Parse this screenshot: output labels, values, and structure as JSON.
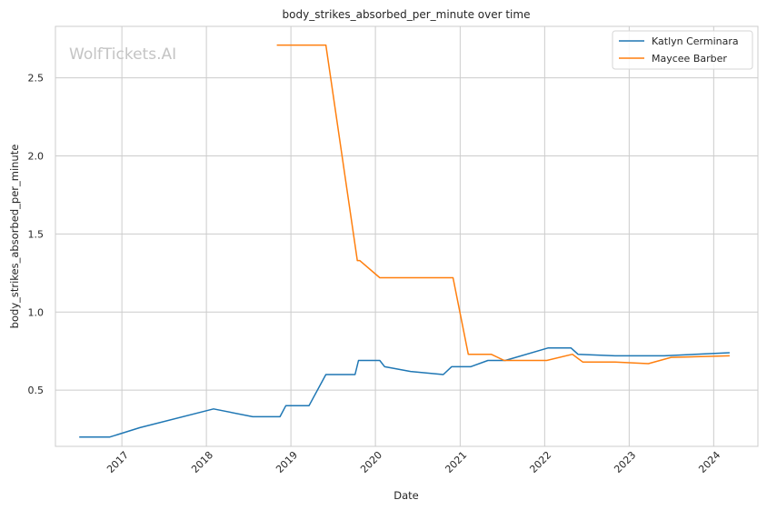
{
  "chart_data": {
    "type": "line",
    "title": "body_strikes_absorbed_per_minute over time",
    "xlabel": "Date",
    "ylabel": "body_strikes_absorbed_per_minute",
    "watermark": "WolfTickets.AI",
    "xlim": [
      "2016-03-20",
      "2024-07-10"
    ],
    "ylim": [
      0.14,
      2.83
    ],
    "x_ticks": [
      "2017",
      "2018",
      "2019",
      "2020",
      "2021",
      "2022",
      "2023",
      "2024"
    ],
    "y_ticks": [
      "0.5",
      "1.0",
      "1.5",
      "2.0",
      "2.5"
    ],
    "grid": true,
    "legend_position": "top-right",
    "series": [
      {
        "name": "Katlyn Cerminara",
        "color": "#1f77b4",
        "points": [
          [
            "2016-07-01",
            0.2
          ],
          [
            "2016-11-10",
            0.2
          ],
          [
            "2017-03-20",
            0.26
          ],
          [
            "2018-02-01",
            0.38
          ],
          [
            "2018-07-20",
            0.33
          ],
          [
            "2018-11-15",
            0.33
          ],
          [
            "2018-12-10",
            0.4
          ],
          [
            "2019-03-20",
            0.4
          ],
          [
            "2019-06-01",
            0.6
          ],
          [
            "2019-10-05",
            0.6
          ],
          [
            "2019-10-20",
            0.69
          ],
          [
            "2020-01-20",
            0.69
          ],
          [
            "2020-02-10",
            0.65
          ],
          [
            "2020-06-01",
            0.62
          ],
          [
            "2020-10-20",
            0.6
          ],
          [
            "2020-11-25",
            0.65
          ],
          [
            "2021-02-15",
            0.65
          ],
          [
            "2021-05-01",
            0.69
          ],
          [
            "2021-07-15",
            0.69
          ],
          [
            "2022-01-15",
            0.77
          ],
          [
            "2022-04-25",
            0.77
          ],
          [
            "2022-05-25",
            0.73
          ],
          [
            "2022-11-01",
            0.72
          ],
          [
            "2023-06-01",
            0.72
          ],
          [
            "2024-03-10",
            0.74
          ]
        ]
      },
      {
        "name": "Maycee Barber",
        "color": "#ff7f0e",
        "points": [
          [
            "2018-11-01",
            2.71
          ],
          [
            "2019-06-01",
            2.71
          ],
          [
            "2019-10-15",
            1.33
          ],
          [
            "2019-10-25",
            1.33
          ],
          [
            "2020-01-20",
            1.22
          ],
          [
            "2020-12-01",
            1.22
          ],
          [
            "2021-02-05",
            0.73
          ],
          [
            "2021-05-15",
            0.73
          ],
          [
            "2021-07-10",
            0.69
          ],
          [
            "2022-01-10",
            0.69
          ],
          [
            "2022-05-01",
            0.73
          ],
          [
            "2022-06-15",
            0.68
          ],
          [
            "2022-11-01",
            0.68
          ],
          [
            "2023-03-25",
            0.67
          ],
          [
            "2023-07-01",
            0.71
          ],
          [
            "2024-03-10",
            0.72
          ]
        ]
      }
    ]
  }
}
